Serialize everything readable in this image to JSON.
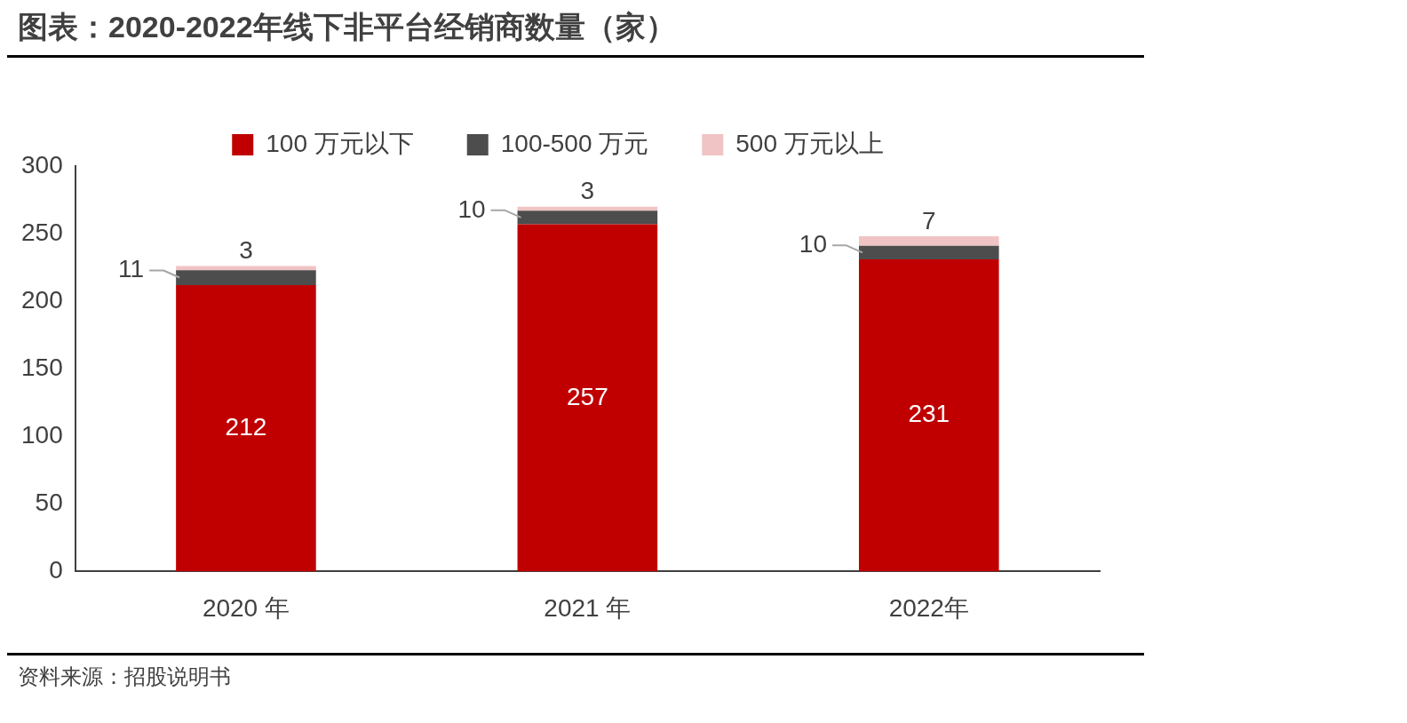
{
  "chart_data": {
    "type": "bar",
    "title": "图表：2020-2022年线下非平台经销商数量（家）",
    "categories": [
      "2020 年",
      "2021 年",
      "2022年"
    ],
    "stacked": true,
    "series": [
      {
        "name": "100 万元以下",
        "color": "#c00000",
        "values": [
          212,
          257,
          231
        ]
      },
      {
        "name": "100-500 万元",
        "color": "#4d4d4d",
        "values": [
          11,
          10,
          10
        ]
      },
      {
        "name": "500 万元以上",
        "color": "#f0c4c4",
        "values": [
          3,
          3,
          7
        ]
      }
    ],
    "ylim": [
      0,
      300
    ],
    "yticks": [
      0,
      50,
      100,
      150,
      200,
      250,
      300
    ],
    "grid": false,
    "legend": "top",
    "data_labels": true,
    "annotations": [
      "资料来源：招股说明书"
    ]
  }
}
